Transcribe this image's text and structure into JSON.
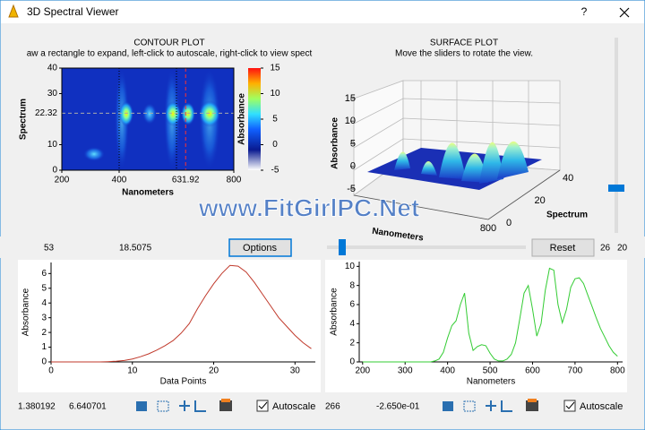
{
  "window": {
    "title": "3D Spectral Viewer",
    "help": "?",
    "watermark": "www.FitGirlPC.Net"
  },
  "controls": {
    "readout_x": "53",
    "readout_y": "18.5075",
    "options": "Options",
    "reset": "Reset",
    "rot_a": "26",
    "rot_b": "20",
    "left_x": "1.380192",
    "left_y": "6.640701",
    "left_autoscale": "Autoscale",
    "right_x": "266",
    "right_y": "-2.650e-01",
    "right_autoscale": "Autoscale"
  },
  "chart_data": [
    {
      "type": "heatmap",
      "title": "CONTOUR PLOT",
      "subtitle": "aw a rectangle to expand, left-click to autoscale, right-click to view spect",
      "x_label": "Nanometers",
      "y_label": "Spectrum",
      "colorbar_label": "Absorbance",
      "xlim": [
        200,
        800
      ],
      "ylim": [
        0,
        40
      ],
      "xticks": [
        200,
        400,
        800
      ],
      "yticks": [
        0,
        10,
        30,
        40
      ],
      "clim": [
        -5,
        15
      ],
      "cticks": [
        -5,
        0,
        5,
        10,
        15
      ],
      "cursor_x": 631.92,
      "cursor_y": 22.32,
      "marker_lines": [
        400,
        600
      ]
    },
    {
      "type": "surface",
      "title": "SURFACE PLOT",
      "subtitle": "Move the sliders to rotate the view.",
      "z_label": "Absorbance",
      "x_label": "Nanometers",
      "y_label": "Spectrum",
      "zlim": [
        -5,
        15
      ],
      "zticks": [
        -5,
        0,
        5,
        10,
        15
      ],
      "xlim": [
        200,
        800
      ],
      "xticks": [
        800
      ],
      "ylim": [
        0,
        40
      ],
      "yticks": [
        0,
        20,
        40
      ]
    },
    {
      "type": "line",
      "x_label": "Data Points",
      "y_label": "Absorbance",
      "x": [
        0,
        1,
        2,
        3,
        4,
        5,
        6,
        7,
        8,
        9,
        10,
        11,
        12,
        13,
        14,
        15,
        16,
        17,
        18,
        19,
        20,
        21,
        22,
        23,
        24,
        25,
        26,
        27,
        28,
        29,
        30,
        31,
        32
      ],
      "series": [
        {
          "color": "#c0392b",
          "values": [
            0,
            0,
            0,
            0,
            0,
            0,
            0,
            0.02,
            0.05,
            0.1,
            0.2,
            0.35,
            0.55,
            0.8,
            1.1,
            1.45,
            1.95,
            2.6,
            3.6,
            4.5,
            5.3,
            6.0,
            6.55,
            6.5,
            6.1,
            5.4,
            4.6,
            3.8,
            3.0,
            2.4,
            1.8,
            1.3,
            0.9
          ]
        }
      ],
      "xlim": [
        0,
        32.5
      ],
      "ylim": [
        0,
        6.75
      ],
      "xticks": [
        0,
        10,
        20,
        30
      ],
      "yticks": [
        0,
        1,
        2,
        3,
        4,
        5,
        6
      ]
    },
    {
      "type": "line",
      "x_label": "Nanometers",
      "y_label": "Absorbance",
      "x": [
        200,
        210,
        220,
        230,
        240,
        250,
        260,
        270,
        280,
        290,
        300,
        310,
        320,
        330,
        340,
        350,
        360,
        370,
        380,
        390,
        400,
        410,
        420,
        430,
        440,
        450,
        460,
        470,
        480,
        490,
        500,
        510,
        520,
        530,
        540,
        550,
        560,
        570,
        580,
        590,
        600,
        610,
        620,
        630,
        640,
        650,
        660,
        670,
        680,
        690,
        700,
        710,
        720,
        730,
        740,
        750,
        760,
        770,
        780,
        790,
        800
      ],
      "series": [
        {
          "color": "#33cc33",
          "values": [
            0,
            0,
            0,
            0,
            0,
            0,
            0,
            0,
            0,
            0,
            0,
            0,
            0,
            0,
            0,
            0,
            0,
            0.1,
            0.3,
            1.0,
            2.5,
            3.8,
            4.3,
            6.0,
            7.2,
            3.0,
            1.2,
            1.6,
            1.8,
            1.7,
            0.9,
            0.3,
            0.1,
            0.1,
            0.3,
            0.8,
            2.0,
            4.5,
            7.2,
            8.0,
            5.5,
            2.7,
            4.0,
            7.5,
            9.8,
            9.6,
            6.0,
            4.1,
            5.5,
            7.8,
            8.7,
            8.8,
            8.2,
            7.0,
            5.8,
            4.6,
            3.5,
            2.6,
            1.7,
            1.0,
            0.6
          ]
        }
      ],
      "xlim": [
        192,
        812
      ],
      "ylim": [
        0,
        10.5
      ],
      "xticks": [
        200,
        300,
        400,
        500,
        600,
        700,
        800
      ],
      "yticks": [
        0,
        2,
        4,
        6,
        8,
        10
      ]
    }
  ]
}
